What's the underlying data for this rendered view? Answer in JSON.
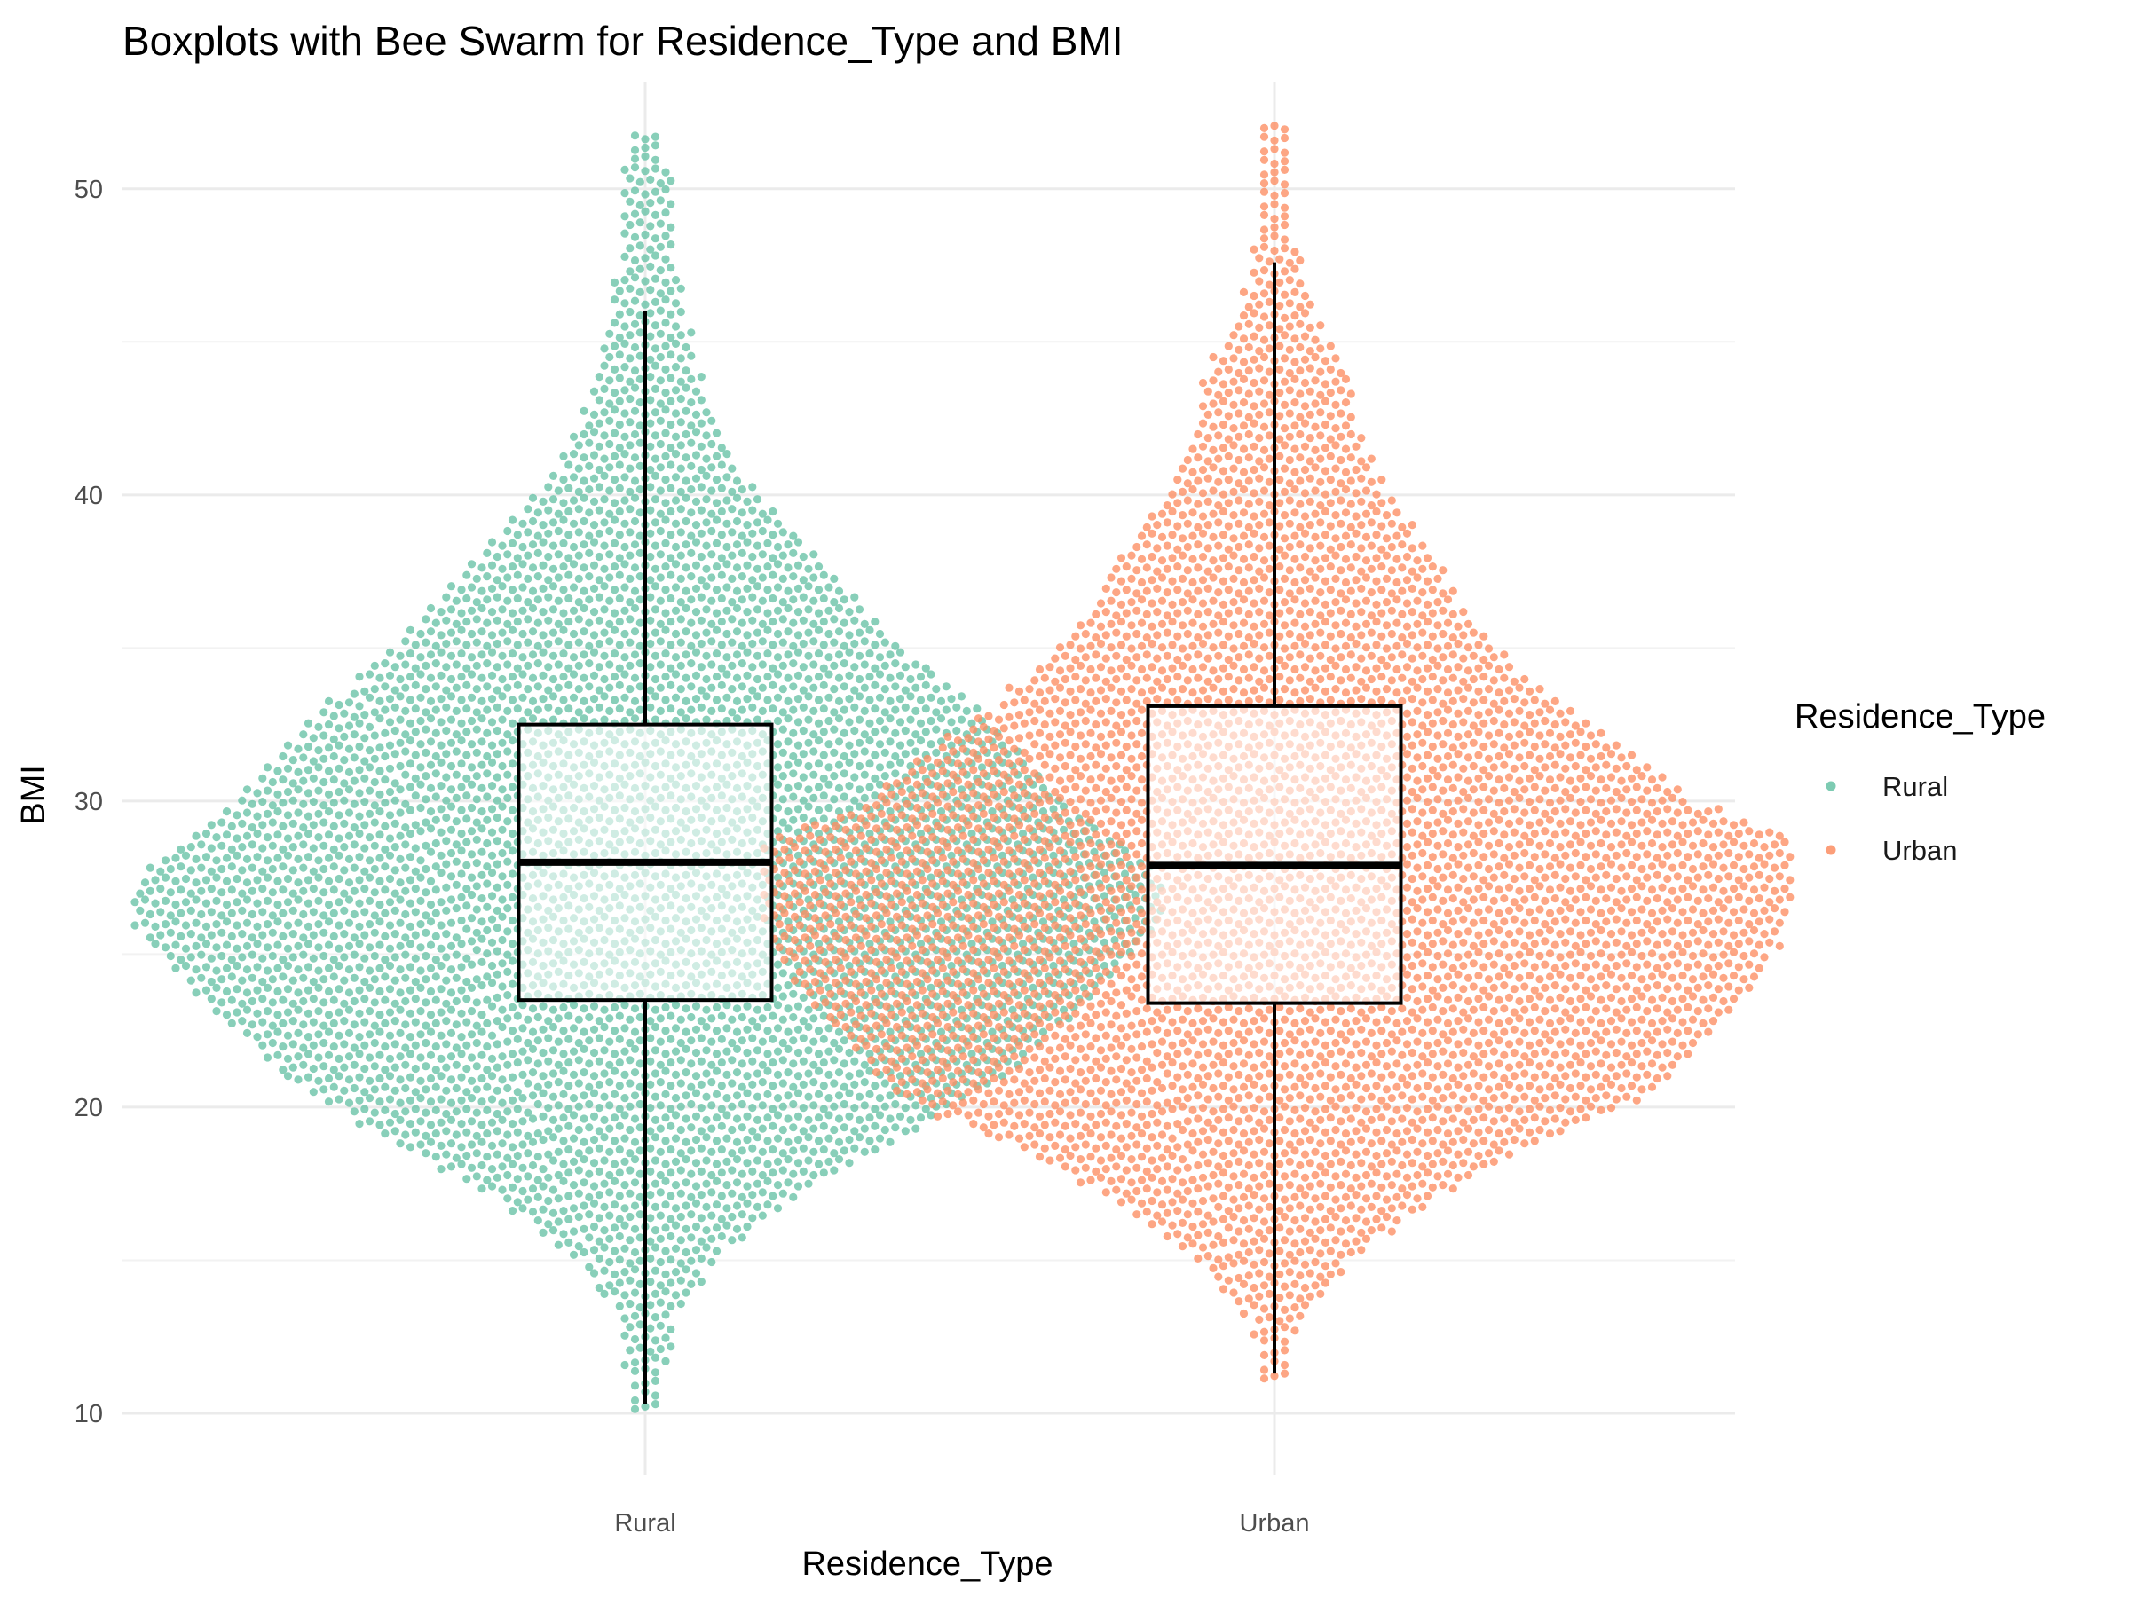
{
  "chart_data": {
    "type": "boxplot",
    "title": "Boxplots with Bee Swarm for Residence_Type and BMI",
    "xlabel": "Residence_Type",
    "ylabel": "BMI",
    "categories": [
      "Rural",
      "Urban"
    ],
    "ylim": [
      8,
      53.5
    ],
    "y_ticks": [
      10,
      20,
      30,
      40,
      50
    ],
    "grid": true,
    "legend": {
      "title": "Residence_Type",
      "position": "right",
      "entries": [
        {
          "label": "Rural",
          "color": "#66C2A5"
        },
        {
          "label": "Urban",
          "color": "#FC8D62"
        }
      ]
    },
    "boxes": [
      {
        "name": "Rural",
        "whisker_low": 10.3,
        "q1": 23.5,
        "median": 28.0,
        "q3": 32.5,
        "whisker_high": 46.0,
        "max": 51.8
      },
      {
        "name": "Urban",
        "whisker_low": 11.3,
        "q1": 23.4,
        "median": 27.9,
        "q3": 33.1,
        "whisker_high": 47.6,
        "max": 52.2
      }
    ],
    "swarm_density_profile": {
      "Rural": [
        [
          10.3,
          0.02
        ],
        [
          13,
          0.04
        ],
        [
          15,
          0.12
        ],
        [
          17,
          0.27
        ],
        [
          19,
          0.48
        ],
        [
          21,
          0.68
        ],
        [
          22.5,
          0.78
        ],
        [
          24,
          0.88
        ],
        [
          26,
          0.98
        ],
        [
          26.7,
          1.0
        ],
        [
          28,
          0.96
        ],
        [
          30,
          0.8
        ],
        [
          32,
          0.68
        ],
        [
          33.5,
          0.6
        ],
        [
          35,
          0.48
        ],
        [
          36.5,
          0.4
        ],
        [
          38,
          0.32
        ],
        [
          40,
          0.2
        ],
        [
          42,
          0.13
        ],
        [
          44,
          0.09
        ],
        [
          46,
          0.06
        ],
        [
          48,
          0.04
        ],
        [
          50.5,
          0.04
        ],
        [
          51.8,
          0.01
        ]
      ],
      "Urban": [
        [
          11.3,
          0.01
        ],
        [
          13,
          0.04
        ],
        [
          15,
          0.13
        ],
        [
          17,
          0.3
        ],
        [
          19,
          0.52
        ],
        [
          20.5,
          0.72
        ],
        [
          23,
          0.86
        ],
        [
          25,
          0.96
        ],
        [
          27,
          1.0
        ],
        [
          28.7,
          1.0
        ],
        [
          30,
          0.8
        ],
        [
          32,
          0.65
        ],
        [
          34,
          0.48
        ],
        [
          36,
          0.36
        ],
        [
          38,
          0.3
        ],
        [
          40,
          0.2
        ],
        [
          42,
          0.15
        ],
        [
          44,
          0.13
        ],
        [
          45.5,
          0.07
        ],
        [
          48,
          0.03
        ],
        [
          50.5,
          0.02
        ],
        [
          52.2,
          0.01
        ]
      ]
    }
  }
}
